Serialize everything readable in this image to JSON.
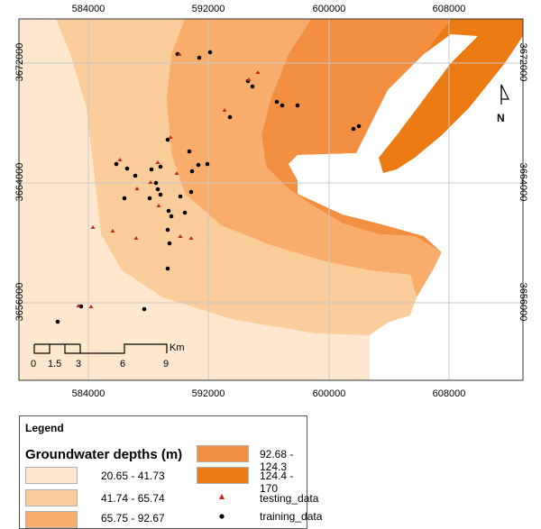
{
  "map": {
    "x_ticks": [
      "584000",
      "592000",
      "600000",
      "608000"
    ],
    "y_ticks": [
      "3672000",
      "3664000",
      "3656000"
    ],
    "scale_bar": {
      "labels": [
        "0",
        "1.5",
        "3",
        "6",
        "9"
      ],
      "unit": "Km"
    },
    "north_arrow_label": "N"
  },
  "legend": {
    "title": "Legend",
    "subtitle": "Groundwater depths (m)",
    "classes": [
      {
        "label": "20.65 - 41.73",
        "color": "#fde8cf"
      },
      {
        "label": "41.74 - 65.74",
        "color": "#fbcd9a"
      },
      {
        "label": "65.75 - 92.67",
        "color": "#f8ad6c"
      },
      {
        "label": "92.68 - 124.3",
        "color": "#f38f40"
      },
      {
        "label": "124.4 - 170",
        "color": "#ed7b14"
      }
    ],
    "points": [
      {
        "label": "testing_data",
        "color": "#c0281b",
        "symbol": "triangle"
      },
      {
        "label": "training_data",
        "color": "#000000",
        "symbol": "circle"
      }
    ]
  }
}
